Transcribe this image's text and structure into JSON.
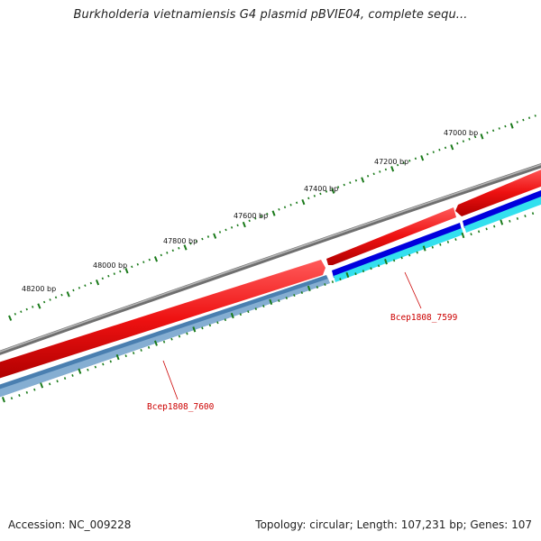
{
  "header": {
    "title": "Burkholderia vietnamiensis G4 plasmid pBVIE04, complete sequ..."
  },
  "ruler": {
    "labels": [
      "47000 bp",
      "47200 bp",
      "47400 bp",
      "47600 bp",
      "47800 bp",
      "48000 bp",
      "48200 bp"
    ],
    "color": "#1a7a1a"
  },
  "genes": [
    {
      "name": "Bcep1808_7599",
      "color": "#cc0000"
    },
    {
      "name": "Bcep1808_7600",
      "color": "#cc0000"
    }
  ],
  "tracks": {
    "backbone_color": "#7f7f7f",
    "forward_color": "#ee1111",
    "reverse_color_a": "#0000dd",
    "reverse_color_b": "#4a7fb0",
    "reverse_highlight": "#33e0ee"
  },
  "footer": {
    "accession": "Accession: NC_009228",
    "summary": "Topology: circular; Length: 107,231 bp; Genes: 107"
  }
}
